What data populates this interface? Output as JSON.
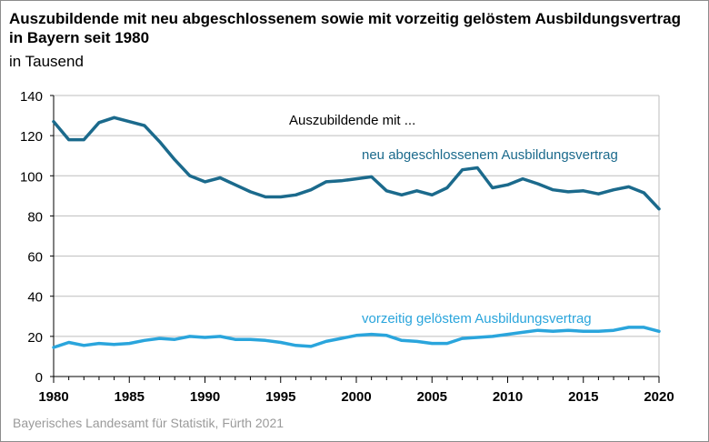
{
  "chart_data": {
    "type": "line",
    "title": "Auszubildende mit neu abgeschlossenem sowie mit vorzeitig gelöstem Ausbildungsvertrag in Bayern seit 1980",
    "subtitle": "in Tausend",
    "source": "Bayerisches Landesamt für Statistik, Fürth 2021",
    "annotation": "Auszubildende mit ...",
    "xlim": [
      1980,
      2020
    ],
    "ylim": [
      0,
      140
    ],
    "x_ticks": [
      1980,
      1985,
      1990,
      1995,
      2000,
      2005,
      2010,
      2015,
      2020
    ],
    "y_ticks": [
      0,
      20,
      40,
      60,
      80,
      100,
      120,
      140
    ],
    "grid": true,
    "x": [
      1980,
      1981,
      1982,
      1983,
      1984,
      1985,
      1986,
      1987,
      1988,
      1989,
      1990,
      1991,
      1992,
      1993,
      1994,
      1995,
      1996,
      1997,
      1998,
      1999,
      2000,
      2001,
      2002,
      2003,
      2004,
      2005,
      2006,
      2007,
      2008,
      2009,
      2010,
      2011,
      2012,
      2013,
      2014,
      2015,
      2016,
      2017,
      2018,
      2019,
      2020
    ],
    "series": [
      {
        "name": "neu abgeschlossenem Ausbildungsvertrag",
        "color": "#1b6a8c",
        "values": [
          127,
          118,
          118,
          126.5,
          129,
          127,
          125,
          117,
          108,
          100,
          97,
          99,
          95.5,
          92,
          89.5,
          89.5,
          90.5,
          93,
          97,
          97.5,
          98.5,
          99.5,
          92.5,
          90.5,
          92.5,
          90.5,
          94,
          103,
          104,
          94,
          95.5,
          98.5,
          96,
          93,
          92,
          92.5,
          91,
          93,
          94.5,
          91.5,
          83.5
        ]
      },
      {
        "name": "vorzeitig gelöstem Ausbildungsvertrag",
        "color": "#2aa5dc",
        "values": [
          14.5,
          17,
          15.5,
          16.5,
          16,
          16.5,
          18,
          19,
          18.5,
          20,
          19.5,
          20,
          18.5,
          18.5,
          18,
          17,
          15.5,
          15,
          17.5,
          19,
          20.5,
          21,
          20.5,
          18,
          17.5,
          16.5,
          16.5,
          19,
          19.5,
          20,
          21,
          22,
          23,
          22.5,
          23,
          22.5,
          22.5,
          23,
          24.5,
          24.5,
          22.5
        ]
      }
    ]
  }
}
